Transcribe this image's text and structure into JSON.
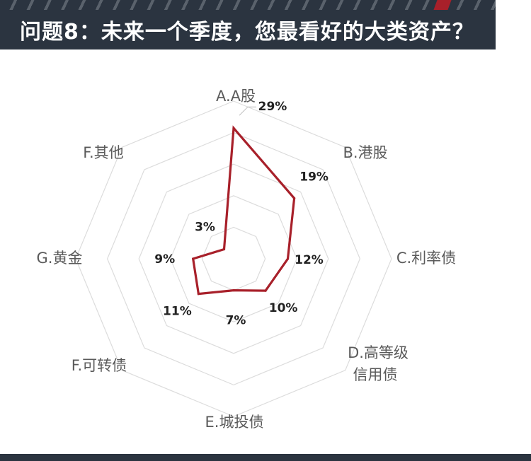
{
  "header": {
    "title": "问题8：未来一个季度，您最看好的大类资产？"
  },
  "colors": {
    "series": "#a8202a",
    "grid": "#dcdcdc",
    "header_bg": "#2b3440",
    "category_text": "#5a5a5a",
    "value_text": "#222222"
  },
  "chart_data": {
    "type": "radar",
    "categories": [
      {
        "line1": "A.A股",
        "line2": ""
      },
      {
        "line1": "B.港股",
        "line2": ""
      },
      {
        "line1": "C.利率债",
        "line2": ""
      },
      {
        "line1": "D.高等级",
        "line2": "信用债"
      },
      {
        "line1": "E.城投债",
        "line2": ""
      },
      {
        "line1": "F.可转债",
        "line2": ""
      },
      {
        "line1": "G.黄金",
        "line2": ""
      },
      {
        "line1": "F.其他",
        "line2": ""
      }
    ],
    "values": [
      29,
      19,
      12,
      10,
      7,
      11,
      9,
      3
    ],
    "value_labels": [
      "29%",
      "19%",
      "12%",
      "10%",
      "7%",
      "11%",
      "9%",
      "3%"
    ],
    "range": [
      0,
      35
    ],
    "grid_rings": 5
  }
}
